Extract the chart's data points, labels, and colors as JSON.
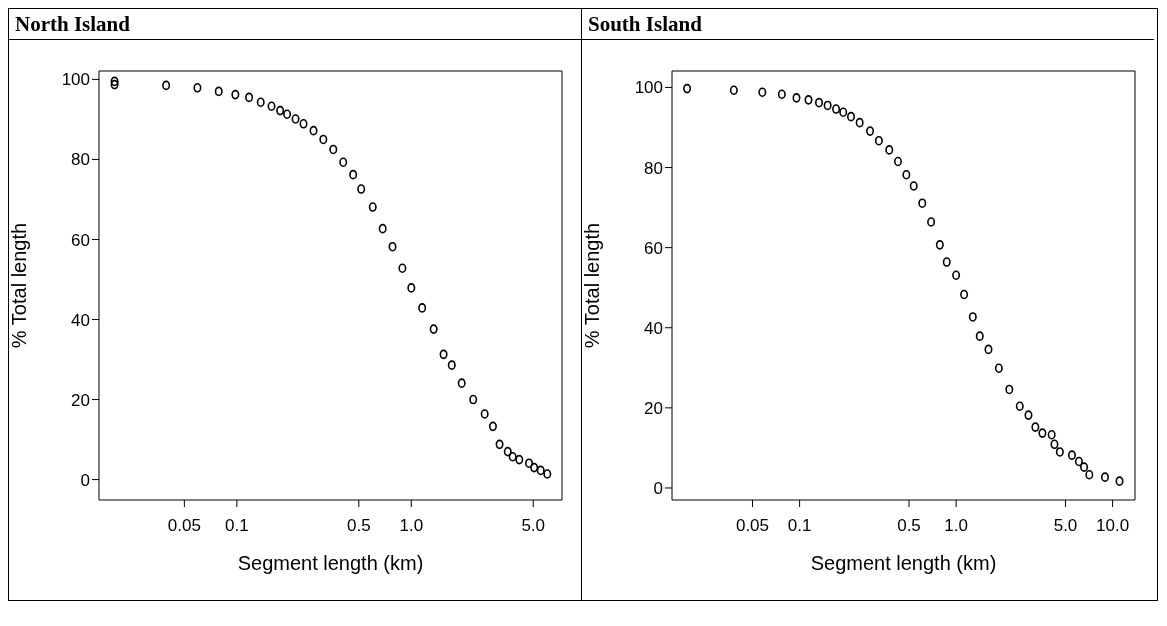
{
  "chart_data": [
    {
      "type": "scatter",
      "title": "North Island",
      "xlabel": "Segment length (km)",
      "ylabel": "% Total length",
      "log": "x",
      "marker": "circle",
      "grid": false,
      "legend": false,
      "xlim": [
        0.0162,
        7.31
      ],
      "xticks": [
        0.05,
        0.1,
        0.5,
        {
          "value": 1,
          "label": "1.0"
        },
        {
          "value": 5,
          "label": "5.0"
        }
      ],
      "ylim": [
        -5.1,
        102.1
      ],
      "yticks": [
        0,
        20,
        40,
        60,
        80,
        100
      ],
      "x": [
        0.0199,
        0.0199,
        0.0393,
        0.0594,
        0.0787,
        0.098,
        0.1175,
        0.137,
        0.158,
        0.177,
        0.194,
        0.217,
        0.241,
        0.275,
        0.313,
        0.357,
        0.407,
        0.464,
        0.516,
        0.601,
        0.685,
        0.78,
        0.889,
        1.0,
        1.154,
        1.343,
        1.531,
        1.706,
        1.945,
        2.264,
        2.634,
        2.937,
        3.206,
        3.572,
        3.811,
        4.16,
        4.73,
        5.06,
        5.52,
        6.02
      ],
      "series": [
        {
          "color": "#000000",
          "values": [
            99.5,
            98.7,
            98.5,
            97.9,
            97.0,
            96.2,
            95.5,
            94.3,
            93.3,
            92.2,
            91.3,
            90.1,
            88.9,
            87.2,
            85.0,
            82.5,
            79.3,
            76.2,
            72.6,
            68.1,
            62.7,
            58.2,
            52.8,
            47.9,
            42.9,
            37.6,
            31.3,
            28.6,
            24.1,
            20.0,
            16.4,
            13.3,
            8.8,
            7.0,
            5.7,
            5.0,
            4.1,
            3.0,
            2.3,
            1.4
          ]
        }
      ]
    },
    {
      "type": "scatter",
      "title": "South Island",
      "xlabel": "Segment length (km)",
      "ylabel": "% Total length",
      "log": "x",
      "marker": "circle",
      "grid": false,
      "legend": false,
      "xlim": [
        0.0153,
        13.9
      ],
      "xticks": [
        0.05,
        0.1,
        0.5,
        {
          "value": 1,
          "label": "1.0"
        },
        {
          "value": 5,
          "label": "5.0"
        },
        {
          "value": 10,
          "label": "10.0"
        }
      ],
      "ylim": [
        -3.0,
        104.1
      ],
      "yticks": [
        0,
        20,
        40,
        60,
        80,
        100
      ],
      "x": [
        0.0191,
        0.038,
        0.0578,
        0.077,
        0.0955,
        0.114,
        0.133,
        0.151,
        0.171,
        0.19,
        0.213,
        0.242,
        0.282,
        0.321,
        0.374,
        0.425,
        0.481,
        0.536,
        0.608,
        0.692,
        0.787,
        0.871,
        1.0,
        1.125,
        1.278,
        1.416,
        1.61,
        1.876,
        2.188,
        2.551,
        2.9,
        3.21,
        3.56,
        4.08,
        4.25,
        4.6,
        5.5,
        6.09,
        6.57,
        7.1,
        8.94,
        11.07
      ],
      "series": [
        {
          "color": "#000000",
          "values": [
            99.7,
            99.3,
            98.8,
            98.3,
            97.4,
            96.9,
            96.2,
            95.5,
            94.6,
            93.8,
            92.7,
            91.2,
            89.1,
            86.7,
            84.4,
            81.5,
            78.2,
            75.4,
            71.1,
            66.4,
            60.7,
            56.4,
            53.1,
            48.3,
            42.7,
            37.9,
            34.6,
            29.9,
            24.6,
            20.4,
            18.2,
            15.2,
            13.7,
            13.3,
            10.9,
            9.0,
            8.2,
            6.6,
            5.2,
            3.3,
            2.7,
            1.7
          ]
        }
      ]
    }
  ]
}
